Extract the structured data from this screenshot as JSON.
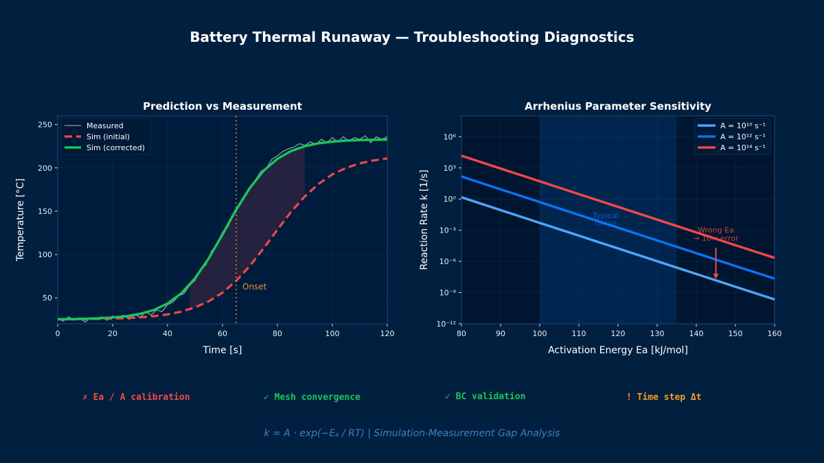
{
  "title": "Battery Thermal Runaway — Troubleshooting Diagnostics",
  "chart_data": [
    {
      "type": "line",
      "title": "Prediction vs Measurement",
      "xlabel": "Time [s]",
      "ylabel": "Temperature [°C]",
      "xlim": [
        0,
        120
      ],
      "ylim": [
        20,
        260
      ],
      "xticks": [
        0,
        20,
        40,
        60,
        80,
        100,
        120
      ],
      "yticks": [
        50,
        100,
        150,
        200,
        250
      ],
      "grid": true,
      "legend_position": "top-left",
      "series": [
        {
          "name": "Measured",
          "color": "#8e9bb0",
          "style": "solid",
          "x": [
            0,
            2,
            4,
            6,
            8,
            10,
            12,
            14,
            16,
            18,
            20,
            22,
            24,
            26,
            28,
            30,
            32,
            34,
            36,
            38,
            40,
            42,
            44,
            46,
            48,
            50,
            52,
            54,
            56,
            58,
            60,
            62,
            64,
            66,
            68,
            70,
            72,
            74,
            76,
            78,
            80,
            82,
            84,
            86,
            88,
            90,
            92,
            94,
            96,
            98,
            100,
            102,
            104,
            106,
            108,
            110,
            112,
            114,
            116,
            118,
            120
          ],
          "y": [
            26,
            23,
            28,
            24,
            27,
            22,
            27,
            25,
            28,
            24,
            29,
            26,
            30,
            25,
            31,
            27,
            34,
            30,
            36,
            34,
            42,
            45,
            52,
            55,
            64,
            70,
            82,
            88,
            104,
            110,
            126,
            132,
            146,
            158,
            168,
            178,
            186,
            196,
            200,
            210,
            214,
            219,
            222,
            224,
            228,
            226,
            230,
            227,
            233,
            229,
            235,
            230,
            236,
            231,
            235,
            233,
            237,
            229,
            236,
            233,
            236
          ]
        },
        {
          "name": "Sim (initial)",
          "color": "#f04848",
          "style": "dashed",
          "x": [
            0,
            5,
            10,
            15,
            20,
            25,
            30,
            35,
            40,
            45,
            50,
            55,
            60,
            65,
            70,
            75,
            80,
            85,
            90,
            95,
            100,
            105,
            110,
            115,
            120
          ],
          "y": [
            25.2,
            25.2,
            25.4,
            25.6,
            26.0,
            26.5,
            27.4,
            28.7,
            30.8,
            34.0,
            38.9,
            45.9,
            56,
            69.6,
            86.9,
            107.2,
            128.6,
            149.3,
            167.2,
            181.6,
            192.4,
            200,
            205.2,
            208.6,
            210.9
          ]
        },
        {
          "name": "Sim (corrected)",
          "color": "#1cc45a",
          "style": "solid",
          "x": [
            0,
            5,
            10,
            15,
            20,
            25,
            30,
            35,
            40,
            45,
            50,
            55,
            60,
            65,
            70,
            75,
            80,
            85,
            90,
            95,
            100,
            105,
            110,
            115,
            120
          ],
          "y": [
            25.2,
            25.4,
            25.7,
            26.3,
            27.2,
            28.7,
            31.4,
            35.9,
            43.4,
            55.1,
            72.4,
            95.5,
            123.2,
            151.7,
            177,
            196.8,
            210.5,
            219.5,
            225,
            228.4,
            230.3,
            231.5,
            232.1,
            232.5,
            232.7
          ]
        }
      ],
      "shaded_gap": {
        "x_range": [
          48,
          90
        ],
        "color": "#f04848"
      },
      "vline": {
        "x": 65,
        "label": "Onset",
        "color": "#e0902a"
      }
    },
    {
      "type": "line",
      "title": "Arrhenius Parameter Sensitivity",
      "xlabel": "Activation Energy Ea [kJ/mol]",
      "ylabel": "Reaction Rate k [1/s]",
      "xlim": [
        80,
        160
      ],
      "ylim": [
        1e-12,
        100000000.0
      ],
      "yscale": "log",
      "xticks": [
        80,
        90,
        100,
        110,
        120,
        130,
        140,
        150,
        160
      ],
      "yticks": [
        1e-12,
        1e-09,
        1e-06,
        0.001,
        1,
        1000.0,
        1000000.0
      ],
      "ytick_labels": [
        "10⁻¹²",
        "10⁻⁹",
        "10⁻⁶",
        "10⁻³",
        "10⁰",
        "10³",
        "10⁶"
      ],
      "grid": true,
      "legend_position": "top-right",
      "series": [
        {
          "name": "A = 10¹⁰ s⁻¹",
          "color": "#4da6ff",
          "x": [
            80,
            90,
            100,
            110,
            120,
            130,
            140,
            150,
            160
          ],
          "y": [
            1.48,
            0.087,
            0.0051,
            0.0003,
            1.78e-05,
            1.05e-06,
            6.2e-08,
            3.6e-09,
            2.2e-10
          ]
        },
        {
          "name": "A = 10¹² s⁻¹",
          "color": "#0a74f0",
          "x": [
            80,
            90,
            100,
            110,
            120,
            130,
            140,
            150,
            160
          ],
          "y": [
            148.0,
            8.7,
            0.51,
            0.03,
            0.00178,
            0.000105,
            6.2e-06,
            3.6e-07,
            2.2e-08
          ]
        },
        {
          "name": "A = 10¹⁴ s⁻¹",
          "color": "#f04848",
          "x": [
            80,
            90,
            100,
            110,
            120,
            130,
            140,
            150,
            160
          ],
          "y": [
            14800.0,
            870.0,
            51.0,
            3.0,
            0.178,
            0.0105,
            0.00062,
            3.6e-05,
            2.2e-06
          ]
        }
      ],
      "shaded_band": {
        "x_range": [
          100,
          135
        ],
        "label": "Typical range",
        "color": "#0a5cc0"
      },
      "annotation": {
        "text_line1": "Wrong Ea",
        "text_line2": "→ 10× error",
        "color": "#f04848",
        "arrow_x": 145
      }
    }
  ],
  "status_items": [
    {
      "text": "✗ Ea / A calibration",
      "color": "#f04848"
    },
    {
      "text": "✓ Mesh convergence",
      "color": "#1cc45a"
    },
    {
      "text": "✓ BC validation",
      "color": "#1cc45a"
    },
    {
      "text": "! Time step Δt",
      "color": "#f39c1e"
    }
  ],
  "footer": "k = A · exp(−Eₐ / RT)  |  Simulation-Measurement Gap Analysis"
}
